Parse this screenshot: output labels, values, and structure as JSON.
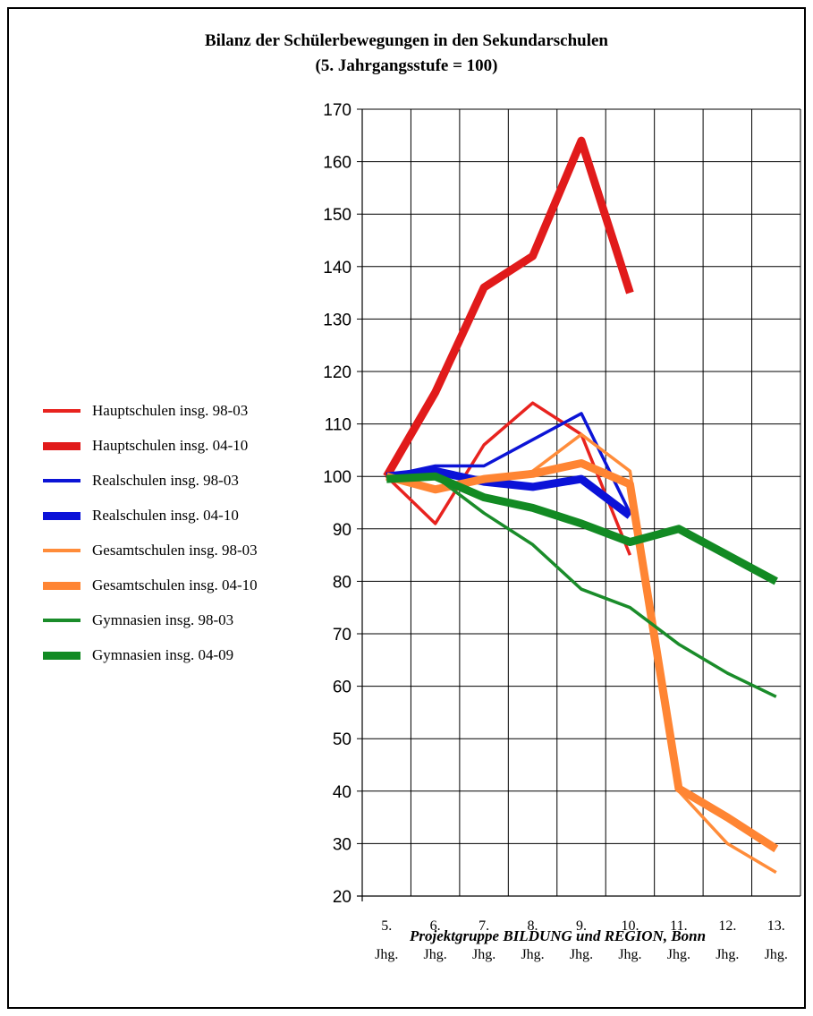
{
  "chart_data": {
    "type": "line",
    "title": "Bilanz der Schülerbewegungen in den Sekundarschulen",
    "subtitle": "(5. Jahrgangsstufe = 100)",
    "xlabel": "",
    "ylabel": "",
    "categories": [
      [
        "5.",
        "Jhg."
      ],
      [
        "6.",
        "Jhg."
      ],
      [
        "7.",
        "Jhg."
      ],
      [
        "8.",
        "Jhg."
      ],
      [
        "9.",
        "Jhg."
      ],
      [
        "10.",
        "Jhg."
      ],
      [
        "11.",
        "Jhg."
      ],
      [
        "12.",
        "Jhg."
      ],
      [
        "13.",
        "Jhg."
      ]
    ],
    "yticks": [
      "20",
      "30",
      "40",
      "50",
      "60",
      "70",
      "80",
      "90",
      "100",
      "110",
      "120",
      "130",
      "140",
      "150",
      "160",
      "170"
    ],
    "ylim": [
      20,
      170
    ],
    "grid": true,
    "legend_position": "left",
    "series": [
      {
        "name": "Hauptschulen insg. 98-03",
        "color": "#e8231f",
        "weight": "thin",
        "values": [
          100,
          91,
          106,
          114,
          108,
          85,
          null,
          null,
          null
        ]
      },
      {
        "name": "Hauptschulen insg. 04-10",
        "color": "#e11a1a",
        "weight": "thick",
        "values": [
          100,
          116,
          136,
          142,
          164,
          135,
          null,
          null,
          null
        ]
      },
      {
        "name": "Realschulen insg. 98-03",
        "color": "#0c14d6",
        "weight": "thin",
        "values": [
          100,
          102,
          102,
          107,
          112,
          93,
          null,
          null,
          null
        ]
      },
      {
        "name": "Realschulen insg. 04-10",
        "color": "#0b12d8",
        "weight": "thick",
        "values": [
          100,
          101,
          99,
          98,
          99.5,
          92.5,
          null,
          null,
          null
        ]
      },
      {
        "name": "Gesamtschulen insg. 98-03",
        "color": "#ff8c3a",
        "weight": "thin",
        "values": [
          100,
          98,
          99,
          101,
          108,
          101,
          40,
          30,
          24.5
        ]
      },
      {
        "name": "Gesamtschulen insg. 04-10",
        "color": "#ff8533",
        "weight": "thick",
        "values": [
          100,
          97.5,
          99.5,
          100.5,
          102.5,
          98.5,
          40.5,
          35,
          29
        ]
      },
      {
        "name": "Gymnasien insg. 98-03",
        "color": "#1a8c2a",
        "weight": "thin",
        "values": [
          100,
          100,
          93,
          87,
          78.5,
          75,
          68,
          62.5,
          58
        ]
      },
      {
        "name": "Gymnasien insg. 04-09",
        "color": "#128a23",
        "weight": "thick",
        "values": [
          99.5,
          100,
          96,
          94,
          91,
          87.5,
          90,
          85,
          80
        ]
      }
    ],
    "credit": "Projektgruppe BILDUNG und REGION, Bonn"
  }
}
